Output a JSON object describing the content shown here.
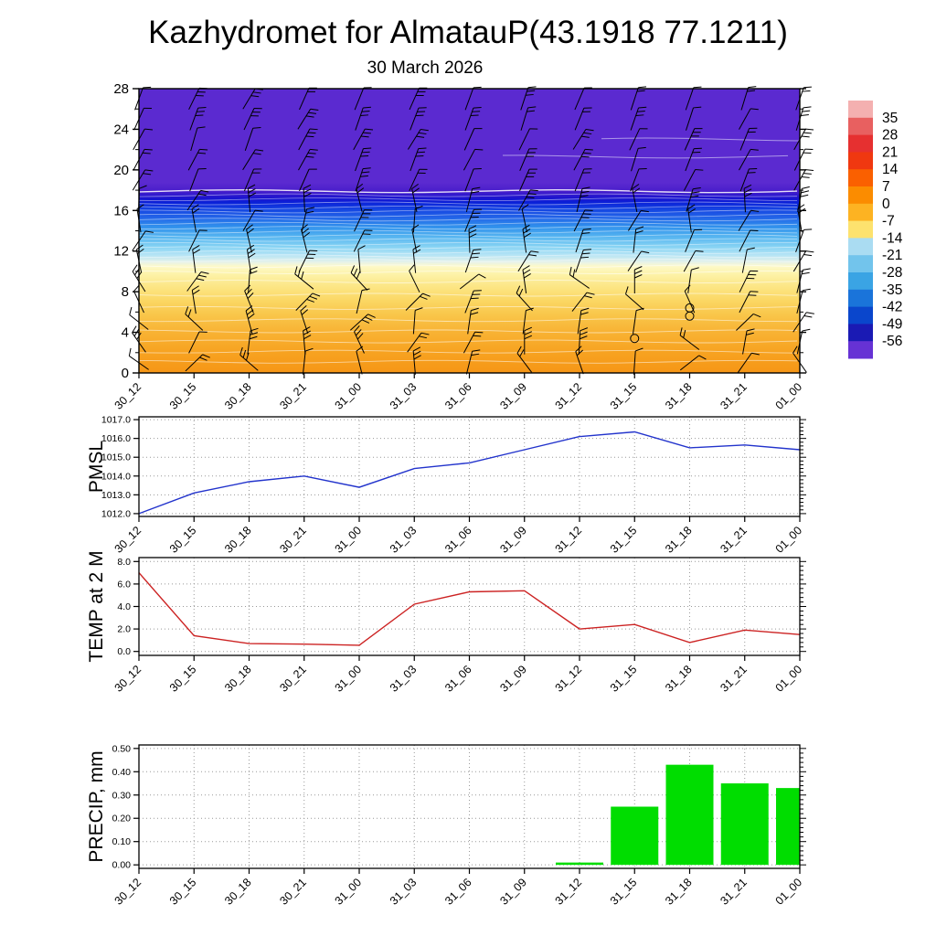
{
  "title": "Kazhydromet for AlmatauP(43.1918 77.1211)",
  "subtitle": "30 March 2026",
  "time_labels": [
    "30_12",
    "30_15",
    "30_18",
    "30_21",
    "31_00",
    "31_03",
    "31_06",
    "31_09",
    "31_12",
    "31_15",
    "31_18",
    "31_21",
    "01_00"
  ],
  "chart_data": [
    {
      "type": "heatmap",
      "name": "wind-temperature-time-height-section",
      "description": "Time-height cross section: temperature shading (deg C) with wind barbs",
      "x": [
        "30_12",
        "30_15",
        "30_18",
        "30_21",
        "31_00",
        "31_03",
        "31_06",
        "31_09",
        "31_12",
        "31_15",
        "31_18",
        "31_21",
        "01_00"
      ],
      "ylim": [
        0,
        28
      ],
      "yticks": [
        0,
        4,
        8,
        12,
        16,
        20,
        24,
        28
      ],
      "colorbar_tick_labels": [
        "35",
        "28",
        "21",
        "14",
        "7",
        "0",
        "-7",
        "-14",
        "-21",
        "-28",
        "-35",
        "-42",
        "-49",
        "-56"
      ],
      "colorbar_colors": [
        "#f4b0b0",
        "#e86060",
        "#e63030",
        "#f03810",
        "#fa6000",
        "#fb8c00",
        "#fdb322",
        "#fde26e",
        "#aadcf2",
        "#72c4ec",
        "#3aa4e4",
        "#1a74da",
        "#0a46cc",
        "#1a1ab4",
        "#6632d4"
      ],
      "fill_gradient": [
        {
          "offset": "0%",
          "color": "#5b2ad0"
        },
        {
          "offset": "33%",
          "color": "#5b2ad0"
        },
        {
          "offset": "36%",
          "color": "#4a1ecb"
        },
        {
          "offset": "38.5%",
          "color": "#1a14cf"
        },
        {
          "offset": "40%",
          "color": "#0a20d8"
        },
        {
          "offset": "42.5%",
          "color": "#1546e2"
        },
        {
          "offset": "45.5%",
          "color": "#2366e8"
        },
        {
          "offset": "48.5%",
          "color": "#3090ec"
        },
        {
          "offset": "52%",
          "color": "#55b4f0"
        },
        {
          "offset": "55.5%",
          "color": "#85d2f3"
        },
        {
          "offset": "58.5%",
          "color": "#b5e4f5"
        },
        {
          "offset": "61%",
          "color": "#e6f2ea"
        },
        {
          "offset": "62.5%",
          "color": "#fdf9c8"
        },
        {
          "offset": "65.5%",
          "color": "#fdf2a6"
        },
        {
          "offset": "69.5%",
          "color": "#fce686"
        },
        {
          "offset": "74.5%",
          "color": "#fbd764"
        },
        {
          "offset": "79.5%",
          "color": "#f9c64a"
        },
        {
          "offset": "85.5%",
          "color": "#f8b334"
        },
        {
          "offset": "92.5%",
          "color": "#f7a321"
        },
        {
          "offset": "100%",
          "color": "#f69616"
        }
      ],
      "contours_low": [
        1.1,
        2.1,
        3.1,
        4.1,
        5.2,
        6.4,
        7.7,
        9.0,
        9.9,
        10.5
      ],
      "contours_mid": [
        11.1,
        11.5,
        11.9,
        12.3,
        12.7,
        13.1,
        13.5,
        13.9,
        14.3,
        14.7,
        15.1,
        15.5,
        15.9,
        16.3,
        16.7,
        17.1,
        17.5
      ],
      "contours_upper": [
        {
          "h": 21.3,
          "from": 0.55
        },
        {
          "h": 23.0,
          "from": 0.7
        }
      ],
      "calm_markers": [
        {
          "i": 9,
          "h": 3.4
        },
        {
          "i": 10,
          "h": 5.6
        },
        {
          "i": 10,
          "h": 6.4
        }
      ],
      "wind_barb_grid": {
        "h_start": 1,
        "h_step": 2,
        "rows": 14
      }
    },
    {
      "type": "line",
      "name": "pmsl",
      "ylabel": "PMSL",
      "line_color": "#2233cc",
      "x": [
        "30_12",
        "30_15",
        "30_18",
        "30_21",
        "31_00",
        "31_03",
        "31_06",
        "31_09",
        "31_12",
        "31_15",
        "31_18",
        "31_21",
        "01_00"
      ],
      "values": [
        1012.0,
        1013.1,
        1013.7,
        1014.0,
        1013.4,
        1014.4,
        1014.7,
        1015.4,
        1016.1,
        1016.35,
        1015.5,
        1015.65,
        1015.4
      ],
      "ylim": [
        1012,
        1017
      ],
      "yticks": [
        1012,
        1013,
        1014,
        1015,
        1016,
        1017
      ],
      "ytick_labels": [
        "1012.0",
        "1013.0",
        "1014.0",
        "1015.0",
        "1016.0",
        "1017.0"
      ]
    },
    {
      "type": "line",
      "name": "temp-2m",
      "ylabel": "TEMP at 2 M",
      "line_color": "#cc2222",
      "x": [
        "30_12",
        "30_15",
        "30_18",
        "30_21",
        "31_00",
        "31_03",
        "31_06",
        "31_09",
        "31_12",
        "31_15",
        "31_18",
        "31_21",
        "01_00"
      ],
      "values": [
        7.0,
        1.4,
        0.7,
        0.65,
        0.55,
        4.2,
        5.3,
        5.4,
        2.0,
        2.4,
        0.8,
        1.9,
        1.5
      ],
      "ylim": [
        0,
        8
      ],
      "yticks": [
        0,
        2,
        4,
        6,
        8
      ],
      "ytick_labels": [
        "0.0",
        "2.0",
        "4.0",
        "6.0",
        "8.0"
      ]
    },
    {
      "type": "bar",
      "name": "precip",
      "ylabel": "PRECIP, mm",
      "bar_color": "#00dd00",
      "x": [
        "30_12",
        "30_15",
        "30_18",
        "30_21",
        "31_00",
        "31_03",
        "31_06",
        "31_09",
        "31_12",
        "31_15",
        "31_18",
        "31_21",
        "01_00"
      ],
      "values": [
        0,
        0,
        0,
        0,
        0,
        0,
        0,
        0,
        0.01,
        0.25,
        0.43,
        0.35,
        0.33
      ],
      "ylim": [
        0,
        0.5
      ],
      "yticks": [
        0,
        0.1,
        0.2,
        0.3,
        0.4,
        0.5
      ],
      "ytick_labels": [
        "0.00",
        "0.10",
        "0.20",
        "0.30",
        "0.40",
        "0.50"
      ]
    }
  ]
}
